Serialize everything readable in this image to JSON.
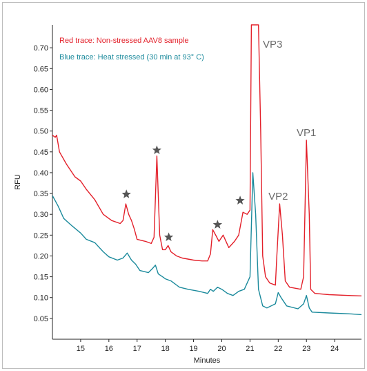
{
  "chart_data": {
    "type": "line",
    "xlabel": "Minutes",
    "ylabel": "RFU",
    "xlim": [
      14.0,
      24.95
    ],
    "ylim": [
      0.0,
      0.755
    ],
    "xticks": [
      15,
      16,
      17,
      18,
      19,
      20,
      21,
      22,
      23,
      24
    ],
    "yticks": [
      0.05,
      0.1,
      0.15,
      0.2,
      0.25,
      0.3,
      0.35,
      0.4,
      0.45,
      0.5,
      0.55,
      0.6,
      0.65,
      0.7
    ],
    "ytick_labels": [
      "0.05",
      "0.10",
      "0.15",
      "0.20",
      "0.25",
      "0.30",
      "0.35",
      "0.40",
      "0.45",
      "0.50",
      "0.55",
      "0.60",
      "0.65",
      "0.70"
    ],
    "grid": false,
    "legend": [
      {
        "text": "Red trace: Non-stressed AAV8 sample",
        "color": "#e3202a"
      },
      {
        "text": "Blue trace: Heat stressed (30 min at 93° C)",
        "color": "#1b8a9c"
      }
    ],
    "series": [
      {
        "name": "Red trace: Non-stressed AAV8 sample",
        "color": "#e3202a",
        "points": [
          [
            14.0,
            0.49
          ],
          [
            14.1,
            0.485
          ],
          [
            14.15,
            0.49
          ],
          [
            14.25,
            0.45
          ],
          [
            14.5,
            0.42
          ],
          [
            14.8,
            0.39
          ],
          [
            15.0,
            0.38
          ],
          [
            15.2,
            0.36
          ],
          [
            15.5,
            0.335
          ],
          [
            15.8,
            0.3
          ],
          [
            16.1,
            0.285
          ],
          [
            16.4,
            0.278
          ],
          [
            16.5,
            0.285
          ],
          [
            16.6,
            0.325
          ],
          [
            16.7,
            0.3
          ],
          [
            16.8,
            0.285
          ],
          [
            16.9,
            0.265
          ],
          [
            17.0,
            0.24
          ],
          [
            17.3,
            0.235
          ],
          [
            17.5,
            0.23
          ],
          [
            17.6,
            0.245
          ],
          [
            17.7,
            0.44
          ],
          [
            17.8,
            0.25
          ],
          [
            17.9,
            0.215
          ],
          [
            18.0,
            0.215
          ],
          [
            18.1,
            0.225
          ],
          [
            18.2,
            0.21
          ],
          [
            18.4,
            0.2
          ],
          [
            18.6,
            0.195
          ],
          [
            19.0,
            0.19
          ],
          [
            19.3,
            0.188
          ],
          [
            19.5,
            0.188
          ],
          [
            19.6,
            0.205
          ],
          [
            19.68,
            0.263
          ],
          [
            19.8,
            0.248
          ],
          [
            19.9,
            0.235
          ],
          [
            20.05,
            0.25
          ],
          [
            20.15,
            0.235
          ],
          [
            20.25,
            0.22
          ],
          [
            20.45,
            0.235
          ],
          [
            20.6,
            0.25
          ],
          [
            20.75,
            0.305
          ],
          [
            20.9,
            0.3
          ],
          [
            21.0,
            0.31
          ],
          [
            21.05,
            0.755
          ],
          [
            21.1,
            0.755
          ],
          [
            21.2,
            0.755
          ],
          [
            21.3,
            0.755
          ],
          [
            21.38,
            0.5
          ],
          [
            21.45,
            0.2
          ],
          [
            21.55,
            0.15
          ],
          [
            21.7,
            0.135
          ],
          [
            21.9,
            0.13
          ],
          [
            21.95,
            0.2
          ],
          [
            22.05,
            0.325
          ],
          [
            22.15,
            0.25
          ],
          [
            22.25,
            0.14
          ],
          [
            22.4,
            0.125
          ],
          [
            22.8,
            0.12
          ],
          [
            22.9,
            0.15
          ],
          [
            23.0,
            0.478
          ],
          [
            23.1,
            0.3
          ],
          [
            23.15,
            0.12
          ],
          [
            23.3,
            0.11
          ],
          [
            23.8,
            0.107
          ],
          [
            24.5,
            0.105
          ],
          [
            24.95,
            0.104
          ]
        ]
      },
      {
        "name": "Blue trace: Heat stressed (30 min at 93° C)",
        "color": "#1b8a9c",
        "points": [
          [
            14.0,
            0.345
          ],
          [
            14.2,
            0.32
          ],
          [
            14.4,
            0.29
          ],
          [
            14.7,
            0.272
          ],
          [
            15.0,
            0.255
          ],
          [
            15.2,
            0.24
          ],
          [
            15.5,
            0.232
          ],
          [
            15.8,
            0.21
          ],
          [
            16.0,
            0.198
          ],
          [
            16.3,
            0.19
          ],
          [
            16.5,
            0.195
          ],
          [
            16.65,
            0.207
          ],
          [
            16.8,
            0.19
          ],
          [
            16.95,
            0.18
          ],
          [
            17.1,
            0.165
          ],
          [
            17.4,
            0.16
          ],
          [
            17.55,
            0.17
          ],
          [
            17.65,
            0.178
          ],
          [
            17.75,
            0.157
          ],
          [
            17.9,
            0.15
          ],
          [
            18.0,
            0.145
          ],
          [
            18.2,
            0.14
          ],
          [
            18.5,
            0.125
          ],
          [
            18.8,
            0.12
          ],
          [
            19.2,
            0.115
          ],
          [
            19.5,
            0.11
          ],
          [
            19.6,
            0.12
          ],
          [
            19.7,
            0.115
          ],
          [
            19.85,
            0.125
          ],
          [
            20.0,
            0.12
          ],
          [
            20.2,
            0.11
          ],
          [
            20.4,
            0.105
          ],
          [
            20.6,
            0.115
          ],
          [
            20.8,
            0.12
          ],
          [
            21.0,
            0.15
          ],
          [
            21.1,
            0.4
          ],
          [
            21.2,
            0.3
          ],
          [
            21.3,
            0.12
          ],
          [
            21.45,
            0.08
          ],
          [
            21.6,
            0.075
          ],
          [
            21.9,
            0.085
          ],
          [
            22.0,
            0.112
          ],
          [
            22.1,
            0.1
          ],
          [
            22.3,
            0.08
          ],
          [
            22.7,
            0.073
          ],
          [
            22.9,
            0.085
          ],
          [
            23.0,
            0.105
          ],
          [
            23.1,
            0.075
          ],
          [
            23.2,
            0.065
          ],
          [
            23.8,
            0.063
          ],
          [
            24.5,
            0.061
          ],
          [
            24.95,
            0.059
          ]
        ]
      }
    ],
    "annotations": [
      {
        "type": "star",
        "x": 16.62,
        "y": 0.348
      },
      {
        "type": "star",
        "x": 17.7,
        "y": 0.454
      },
      {
        "type": "star",
        "x": 18.12,
        "y": 0.245
      },
      {
        "type": "star",
        "x": 19.85,
        "y": 0.275
      },
      {
        "type": "star",
        "x": 20.65,
        "y": 0.333
      },
      {
        "type": "label",
        "text": "VP3",
        "x": 21.8,
        "y": 0.7
      },
      {
        "type": "label",
        "text": "VP2",
        "x": 22.0,
        "y": 0.335
      },
      {
        "type": "label",
        "text": "VP1",
        "x": 23.0,
        "y": 0.488
      }
    ]
  }
}
